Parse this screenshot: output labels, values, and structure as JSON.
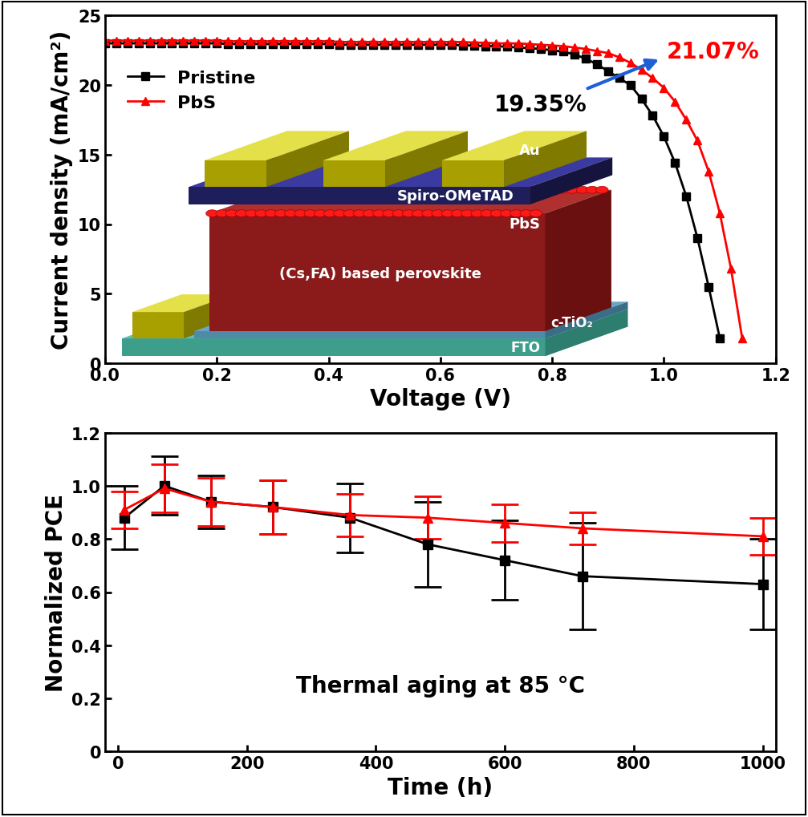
{
  "chart_data": [
    {
      "type": "line",
      "x_label": "Voltage (V)",
      "y_label": "Current density (mA/cm²)",
      "x": [
        0,
        0.02,
        0.04,
        0.06,
        0.08,
        0.1,
        0.12,
        0.14,
        0.16,
        0.18,
        0.2,
        0.22,
        0.24,
        0.26,
        0.28,
        0.3,
        0.32,
        0.34,
        0.36,
        0.38,
        0.4,
        0.42,
        0.44,
        0.46,
        0.48,
        0.5,
        0.52,
        0.54,
        0.56,
        0.58,
        0.6,
        0.62,
        0.64,
        0.66,
        0.68,
        0.7,
        0.72,
        0.74,
        0.76,
        0.78,
        0.8,
        0.82,
        0.84,
        0.86,
        0.88,
        0.9,
        0.92,
        0.94,
        0.96,
        0.98,
        1.0,
        1.02,
        1.04,
        1.06,
        1.08,
        1.1,
        1.12,
        1.14
      ],
      "series": [
        {
          "name": "Pristine",
          "color": "#000000",
          "marker": "square",
          "line_style": "solid",
          "values": [
            23.0,
            23.0,
            23.0,
            23.0,
            23.0,
            23.0,
            23.0,
            23.0,
            23.0,
            23.0,
            23.0,
            22.95,
            22.95,
            22.95,
            22.95,
            22.95,
            22.95,
            22.95,
            22.95,
            22.95,
            22.95,
            22.9,
            22.9,
            22.9,
            22.9,
            22.9,
            22.9,
            22.9,
            22.9,
            22.9,
            22.9,
            22.9,
            22.85,
            22.85,
            22.8,
            22.8,
            22.75,
            22.7,
            22.65,
            22.6,
            22.5,
            22.4,
            22.2,
            21.9,
            21.5,
            21.0,
            20.5,
            20.0,
            19.0,
            17.8,
            16.3,
            14.4,
            12.0,
            9.0,
            5.5,
            1.8,
            null,
            null
          ]
        },
        {
          "name": "PbS",
          "color": "#ff0000",
          "marker": "triangle",
          "line_style": "solid",
          "values": [
            23.2,
            23.2,
            23.2,
            23.2,
            23.2,
            23.2,
            23.2,
            23.2,
            23.2,
            23.2,
            23.2,
            23.15,
            23.15,
            23.15,
            23.15,
            23.15,
            23.15,
            23.15,
            23.15,
            23.15,
            23.15,
            23.1,
            23.1,
            23.1,
            23.1,
            23.1,
            23.1,
            23.1,
            23.1,
            23.1,
            23.1,
            23.1,
            23.1,
            23.05,
            23.05,
            23.0,
            23.0,
            23.0,
            22.95,
            22.9,
            22.85,
            22.8,
            22.7,
            22.6,
            22.45,
            22.3,
            22.0,
            21.6,
            21.1,
            20.5,
            19.8,
            18.8,
            17.5,
            16.0,
            13.8,
            10.8,
            6.8,
            1.8
          ]
        }
      ],
      "xlim": [
        0,
        1.2
      ],
      "xticks": [
        {
          "value": 0,
          "label": "0.0"
        },
        0.2,
        0.4,
        0.6,
        0.8,
        {
          "value": 1,
          "label": "1.0"
        },
        1.2
      ],
      "ylim": [
        0,
        25
      ],
      "yticks": [
        0,
        5,
        10,
        15,
        20,
        25
      ],
      "legend": "upper left",
      "annotations": [
        {
          "text": "19.35%",
          "series": "Pristine"
        },
        {
          "text": "21.07%",
          "series": "PbS"
        }
      ],
      "inset_labels": [
        "Au",
        "Spiro-OMeTAD",
        "PbS",
        "(Cs,FA) based perovskite",
        "c-TiO₂",
        "FTO"
      ]
    },
    {
      "type": "line",
      "x_label": "Time (h)",
      "y_label": "Normalized PCE",
      "x": [
        10,
        72,
        144,
        240,
        360,
        480,
        600,
        720,
        1000
      ],
      "series": [
        {
          "name": "Pristine",
          "color": "#000000",
          "marker": "square",
          "line_style": "solid",
          "values": [
            0.88,
            1.0,
            0.94,
            0.92,
            0.88,
            0.78,
            0.72,
            0.66,
            0.63
          ],
          "errors": [
            0.12,
            0.11,
            0.1,
            0.1,
            0.13,
            0.16,
            0.15,
            0.2,
            0.17
          ]
        },
        {
          "name": "PbS",
          "color": "#ff0000",
          "marker": "triangle",
          "line_style": "solid",
          "values": [
            0.91,
            0.99,
            0.94,
            0.92,
            0.89,
            0.88,
            0.86,
            0.84,
            0.81
          ],
          "errors": [
            0.07,
            0.09,
            0.09,
            0.1,
            0.08,
            0.08,
            0.07,
            0.06,
            0.07
          ]
        }
      ],
      "xlim": [
        -20,
        1020
      ],
      "xticks": [
        0,
        200,
        400,
        600,
        800,
        1000
      ],
      "ylim": [
        0,
        1.2
      ],
      "yticks": [
        0,
        0.2,
        0.4,
        0.6,
        0.8,
        {
          "value": 1,
          "label": "1.0"
        },
        1.2
      ],
      "annotations": [
        {
          "text": "Thermal aging at 85 °C"
        }
      ]
    }
  ]
}
